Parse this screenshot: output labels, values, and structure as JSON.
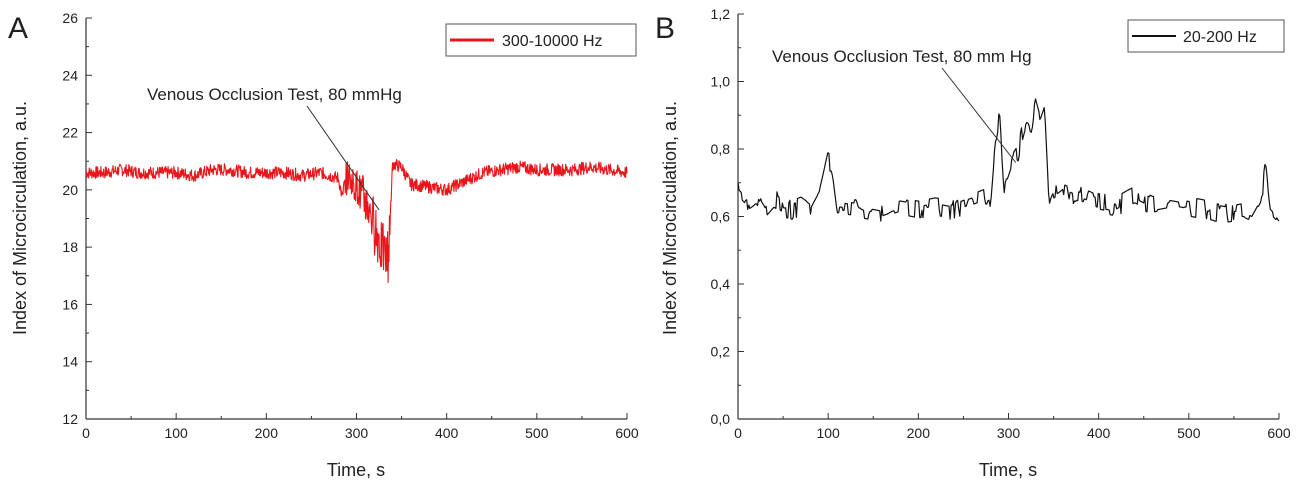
{
  "chart_data": [
    {
      "panel": "A",
      "type": "line",
      "xlabel": "Time, s",
      "ylabel": "Index of Microcirculation, a.u.",
      "xlim": [
        0,
        600
      ],
      "ylim": [
        12,
        26
      ],
      "xticks": [
        0,
        100,
        200,
        300,
        400,
        500,
        600
      ],
      "yticks": [
        12,
        14,
        16,
        18,
        20,
        22,
        24,
        26
      ],
      "ytick_labels": [
        "12",
        "14",
        "16",
        "18",
        "20",
        "22",
        "24",
        "26"
      ],
      "grid": false,
      "legend_position": "top-right",
      "annotation": {
        "text": "Venous Occlusion Test, 80 mmHg",
        "point": [
          325,
          19.3
        ]
      },
      "series": [
        {
          "name": "300-10000 Hz",
          "color": "#e8161b",
          "x": [
            0,
            20,
            40,
            60,
            80,
            100,
            120,
            140,
            160,
            180,
            200,
            220,
            240,
            260,
            280,
            285,
            290,
            295,
            300,
            305,
            310,
            315,
            320,
            325,
            330,
            335,
            340,
            350,
            360,
            380,
            400,
            420,
            440,
            460,
            480,
            500,
            520,
            540,
            560,
            580,
            600
          ],
          "values": [
            20.6,
            20.6,
            20.7,
            20.6,
            20.6,
            20.6,
            20.5,
            20.7,
            20.7,
            20.6,
            20.6,
            20.6,
            20.5,
            20.6,
            20.4,
            19.6,
            20.3,
            20.1,
            19.9,
            19.6,
            19.3,
            18.9,
            18.4,
            17.9,
            17.4,
            17.2,
            20.9,
            20.8,
            20.2,
            20.1,
            20.0,
            20.3,
            20.6,
            20.7,
            20.8,
            20.7,
            20.7,
            20.7,
            20.8,
            20.7,
            20.6
          ]
        }
      ]
    },
    {
      "panel": "B",
      "type": "line",
      "xlabel": "Time, s",
      "ylabel": "Index of Microcirculation, a.u.",
      "xlim": [
        0,
        600
      ],
      "ylim": [
        0,
        1.2
      ],
      "xticks": [
        0,
        100,
        200,
        300,
        400,
        500,
        600
      ],
      "yticks": [
        0,
        0.2,
        0.4,
        0.6,
        0.8,
        1.0,
        1.2
      ],
      "ytick_labels": [
        "0,0",
        "0,2",
        "0,4",
        "0,6",
        "0,8",
        "1,0",
        "1,2"
      ],
      "grid": false,
      "legend_position": "top-right",
      "annotation": {
        "text": "Venous Occlusion Test, 80 mm Hg",
        "point": [
          308,
          0.76
        ]
      },
      "series": [
        {
          "name": "20-200 Hz",
          "color": "#111111",
          "x": [
            0,
            10,
            20,
            30,
            40,
            50,
            60,
            70,
            80,
            90,
            95,
            100,
            105,
            110,
            120,
            140,
            160,
            180,
            200,
            220,
            240,
            260,
            270,
            280,
            285,
            290,
            295,
            300,
            305,
            310,
            315,
            320,
            325,
            330,
            335,
            340,
            345,
            350,
            360,
            380,
            400,
            420,
            440,
            460,
            480,
            500,
            520,
            540,
            560,
            570,
            580,
            585,
            590,
            600
          ],
          "values": [
            0.67,
            0.64,
            0.66,
            0.62,
            0.65,
            0.63,
            0.62,
            0.63,
            0.61,
            0.66,
            0.72,
            0.78,
            0.74,
            0.63,
            0.63,
            0.62,
            0.61,
            0.63,
            0.62,
            0.63,
            0.62,
            0.64,
            0.65,
            0.66,
            0.83,
            0.91,
            0.68,
            0.72,
            0.76,
            0.78,
            0.85,
            0.9,
            0.87,
            0.93,
            0.88,
            0.92,
            0.63,
            0.66,
            0.68,
            0.66,
            0.64,
            0.63,
            0.66,
            0.63,
            0.64,
            0.63,
            0.62,
            0.61,
            0.62,
            0.61,
            0.66,
            0.75,
            0.62,
            0.59
          ]
        }
      ]
    }
  ]
}
